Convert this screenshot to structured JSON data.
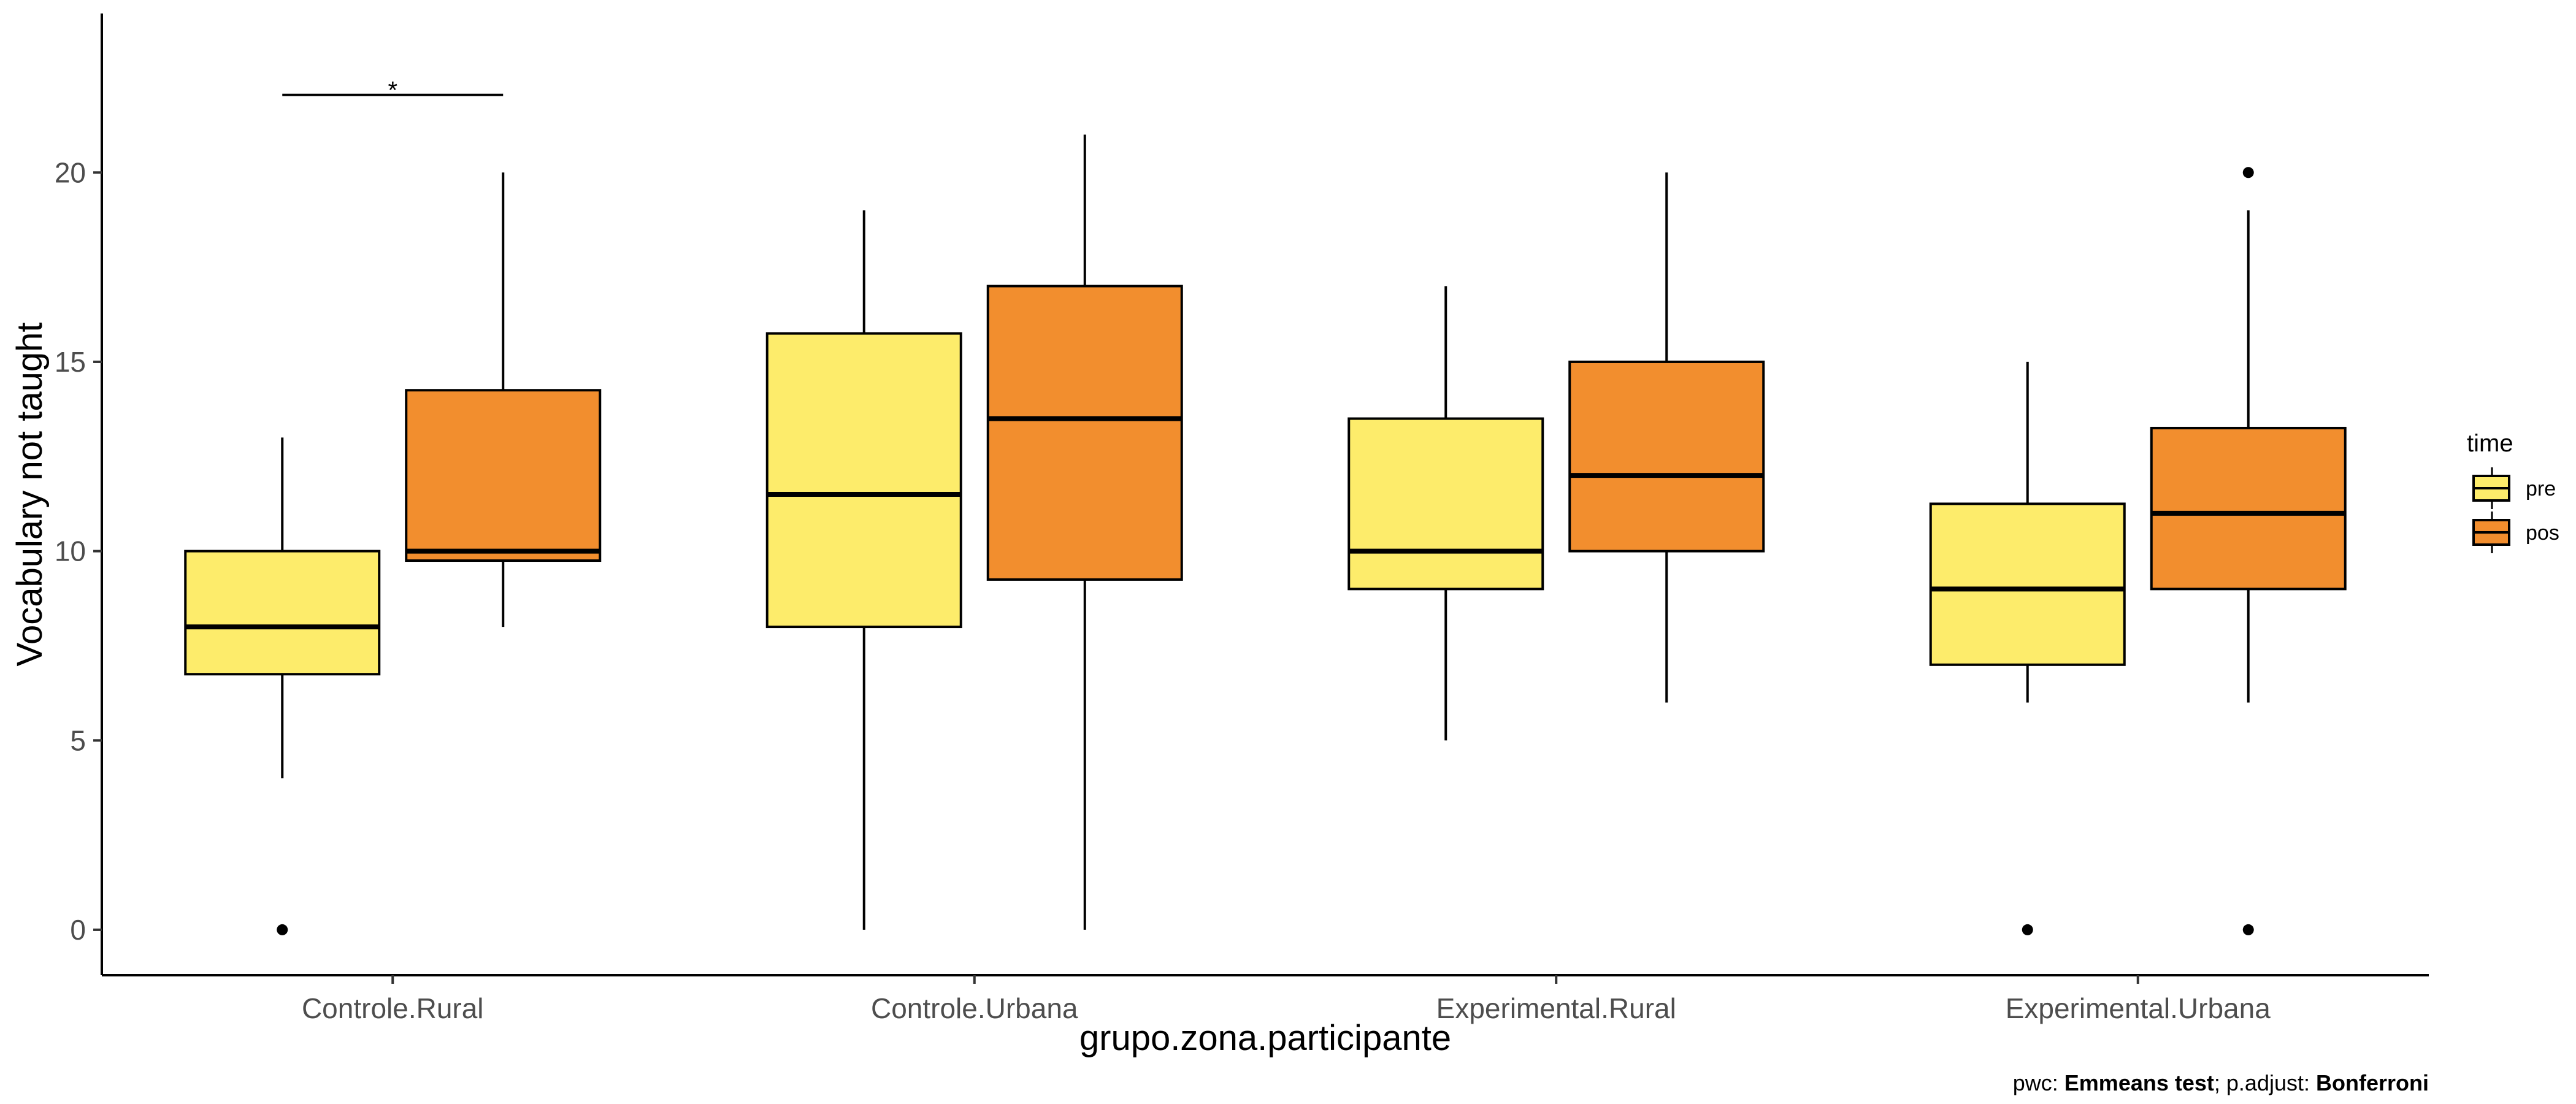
{
  "chart_data": {
    "type": "boxplot",
    "xlabel": "grupo.zona.participante",
    "ylabel": "Vocabulary not taught",
    "ylim": [
      -1.2,
      24.2
    ],
    "yticks": [
      0,
      5,
      10,
      15,
      20
    ],
    "categories": [
      "Controle.Rural",
      "Controle.Urbana",
      "Experimental.Rural",
      "Experimental.Urbana"
    ],
    "grid": false,
    "legend": {
      "title": "time",
      "position": "right",
      "items": [
        {
          "name": "pre",
          "color": "#FDEC6B"
        },
        {
          "name": "pos",
          "color": "#F28E2E"
        }
      ]
    },
    "series": [
      {
        "name": "pre",
        "color": "#FDEC6B",
        "boxes": [
          {
            "category": "Controle.Rural",
            "whisker_low": 4,
            "q1": 6.75,
            "median": 8,
            "q3": 10,
            "whisker_high": 13,
            "outliers": [
              0
            ]
          },
          {
            "category": "Controle.Urbana",
            "whisker_low": 0,
            "q1": 8,
            "median": 11.5,
            "q3": 15.75,
            "whisker_high": 19,
            "outliers": []
          },
          {
            "category": "Experimental.Rural",
            "whisker_low": 5,
            "q1": 9,
            "median": 10,
            "q3": 13.5,
            "whisker_high": 17,
            "outliers": []
          },
          {
            "category": "Experimental.Urbana",
            "whisker_low": 6,
            "q1": 7,
            "median": 9,
            "q3": 11.25,
            "whisker_high": 15,
            "outliers": [
              0
            ]
          }
        ]
      },
      {
        "name": "pos",
        "color": "#F28E2E",
        "boxes": [
          {
            "category": "Controle.Rural",
            "whisker_low": 8,
            "q1": 9.75,
            "median": 10,
            "q3": 14.25,
            "whisker_high": 20,
            "outliers": []
          },
          {
            "category": "Controle.Urbana",
            "whisker_low": 0,
            "q1": 9.25,
            "median": 13.5,
            "q3": 17,
            "whisker_high": 21,
            "outliers": []
          },
          {
            "category": "Experimental.Rural",
            "whisker_low": 6,
            "q1": 10,
            "median": 12,
            "q3": 15,
            "whisker_high": 20,
            "outliers": []
          },
          {
            "category": "Experimental.Urbana",
            "whisker_low": 6,
            "q1": 9,
            "median": 11,
            "q3": 13.25,
            "whisker_high": 19,
            "outliers": [
              0,
              20
            ]
          }
        ]
      }
    ],
    "annotations": [
      {
        "category": "Controle.Rural",
        "y": 22.05,
        "label": "*"
      }
    ],
    "caption": {
      "prefix": "pwc: ",
      "test": "Emmeans test",
      "middle": "; p.adjust: ",
      "method": "Bonferroni"
    }
  }
}
